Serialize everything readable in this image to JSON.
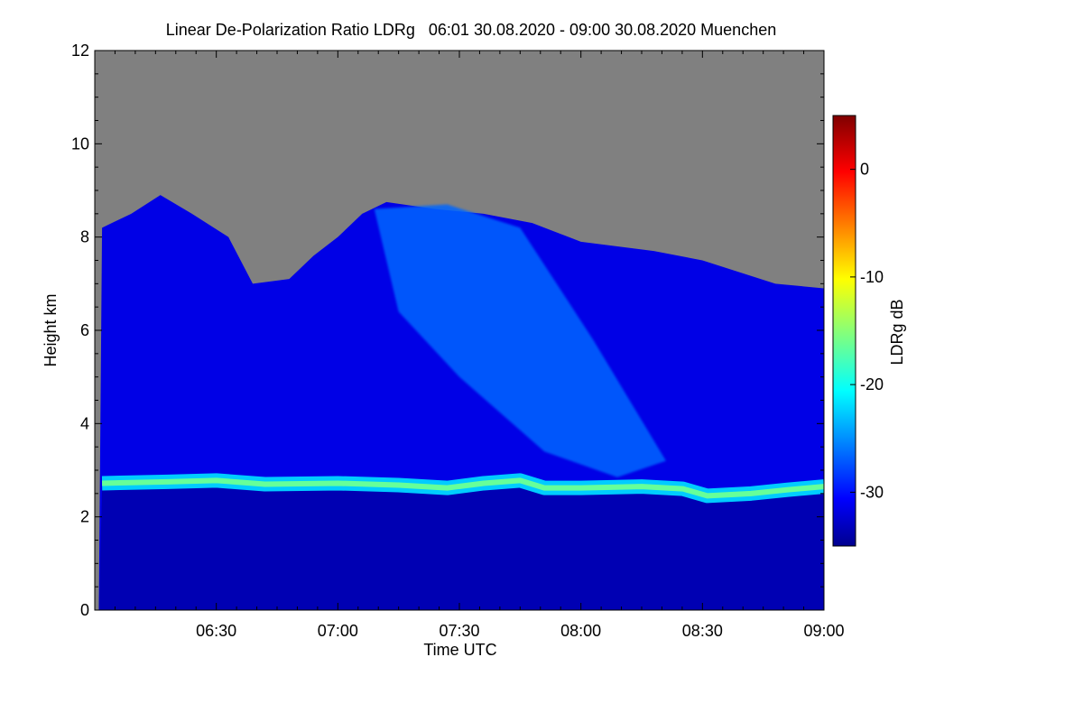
{
  "chart_data": {
    "type": "heatmap",
    "title": "Linear De-Polarization Ratio LDRg   06:01 30.08.2020 - 09:00 30.08.2020 Muenchen",
    "xlabel": "Time UTC",
    "ylabel": "Height km",
    "x_range_hours": [
      6.0167,
      9.0
    ],
    "y_range_km": [
      0,
      12
    ],
    "x_ticks": [
      {
        "value": 6.5,
        "label": "06:30"
      },
      {
        "value": 7.0,
        "label": "07:00"
      },
      {
        "value": 7.5,
        "label": "07:30"
      },
      {
        "value": 8.0,
        "label": "08:00"
      },
      {
        "value": 8.5,
        "label": "08:30"
      },
      {
        "value": 9.0,
        "label": "09:00"
      }
    ],
    "y_ticks": [
      {
        "value": 0,
        "label": "0"
      },
      {
        "value": 2,
        "label": "2"
      },
      {
        "value": 4,
        "label": "4"
      },
      {
        "value": 6,
        "label": "6"
      },
      {
        "value": 8,
        "label": "8"
      },
      {
        "value": 10,
        "label": "10"
      },
      {
        "value": 12,
        "label": "12"
      }
    ],
    "colorbar": {
      "label": "LDRg dB",
      "range": [
        -35,
        5
      ],
      "ticks": [
        {
          "value": 0,
          "label": "0"
        },
        {
          "value": -10,
          "label": "-10"
        },
        {
          "value": -20,
          "label": "-20"
        },
        {
          "value": -30,
          "label": "-30"
        }
      ],
      "colormap": "jet",
      "no_data_color": "#808080"
    },
    "features": {
      "melting_layer_km": [
        {
          "t": 6.03,
          "h": 2.72
        },
        {
          "t": 6.3,
          "h": 2.75
        },
        {
          "t": 6.5,
          "h": 2.78
        },
        {
          "t": 6.7,
          "h": 2.7
        },
        {
          "t": 7.0,
          "h": 2.72
        },
        {
          "t": 7.25,
          "h": 2.68
        },
        {
          "t": 7.45,
          "h": 2.62
        },
        {
          "t": 7.6,
          "h": 2.72
        },
        {
          "t": 7.75,
          "h": 2.78
        },
        {
          "t": 7.85,
          "h": 2.62
        },
        {
          "t": 8.0,
          "h": 2.62
        },
        {
          "t": 8.25,
          "h": 2.65
        },
        {
          "t": 8.42,
          "h": 2.6
        },
        {
          "t": 8.52,
          "h": 2.45
        },
        {
          "t": 8.7,
          "h": 2.5
        },
        {
          "t": 8.85,
          "h": 2.58
        },
        {
          "t": 9.0,
          "h": 2.65
        }
      ],
      "melting_layer_ldr_db": -16,
      "echo_top_km": [
        {
          "t": 6.03,
          "h": 8.2
        },
        {
          "t": 6.15,
          "h": 8.5
        },
        {
          "t": 6.27,
          "h": 8.9
        },
        {
          "t": 6.4,
          "h": 8.5
        },
        {
          "t": 6.55,
          "h": 8.0
        },
        {
          "t": 6.65,
          "h": 7.0
        },
        {
          "t": 6.8,
          "h": 7.1
        },
        {
          "t": 6.9,
          "h": 7.6
        },
        {
          "t": 7.0,
          "h": 8.0
        },
        {
          "t": 7.1,
          "h": 8.5
        },
        {
          "t": 7.2,
          "h": 8.75
        },
        {
          "t": 7.4,
          "h": 8.6
        },
        {
          "t": 7.6,
          "h": 8.5
        },
        {
          "t": 7.8,
          "h": 8.3
        },
        {
          "t": 8.0,
          "h": 7.9
        },
        {
          "t": 8.3,
          "h": 7.7
        },
        {
          "t": 8.5,
          "h": 7.5
        },
        {
          "t": 8.8,
          "h": 7.0
        },
        {
          "t": 9.0,
          "h": 6.9
        }
      ],
      "fall_streak_ldr_db": -26,
      "background_ldr_db": -31
    }
  }
}
